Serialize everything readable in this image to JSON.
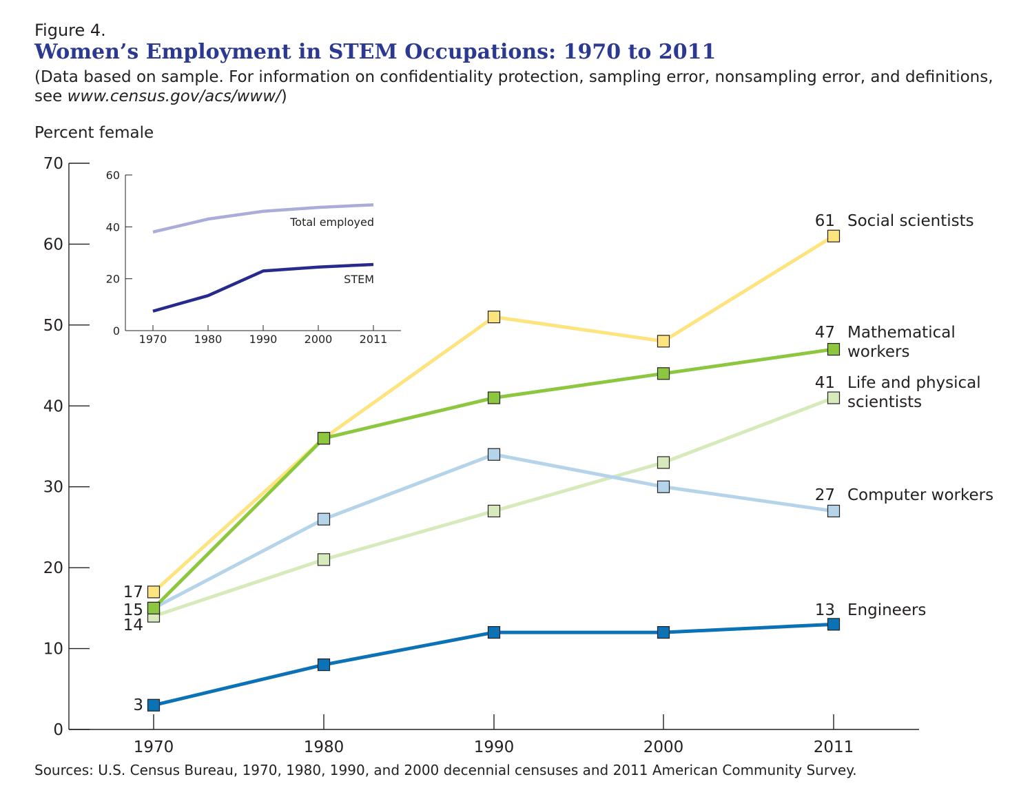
{
  "figure_label": "Figure 4.",
  "title": "Women’s Employment in STEM Occupations: 1970 to 2011",
  "note": {
    "text": "(Data based on sample. For information on confidentiality protection, sampling error, nonsampling error, and definitions, see ",
    "url": "www.census.gov/acs/www/",
    "close": ")"
  },
  "source": "Sources: U.S. Census Bureau, 1970, 1980, 1990, and 2000 decennial censuses and 2011 American Community Survey.",
  "chart_data": [
    {
      "type": "line",
      "ylabel": "Percent female",
      "x": [
        "1970",
        "1980",
        "1990",
        "2000",
        "2011"
      ],
      "ylim": [
        0,
        70
      ],
      "yticks": [
        0,
        10,
        20,
        30,
        40,
        50,
        60,
        70
      ],
      "grid": false,
      "series": [
        {
          "name": "Social scientists",
          "label_lines": [
            "Social scientists"
          ],
          "end_label": "61",
          "start_label": "17",
          "color": "#fde47f",
          "values": [
            17,
            36,
            51,
            48,
            61
          ]
        },
        {
          "name": "Mathematical workers",
          "label_lines": [
            "Mathematical",
            "workers"
          ],
          "end_label": "47",
          "start_label": "",
          "color": "#8dc63f",
          "values": [
            15,
            36,
            41,
            44,
            47
          ]
        },
        {
          "name": "Life and physical scientists",
          "label_lines": [
            "Life and physical",
            "scientists"
          ],
          "end_label": "41",
          "start_label": "14",
          "color": "#d7eabc",
          "values": [
            14,
            21,
            27,
            33,
            41
          ]
        },
        {
          "name": "Computer workers",
          "label_lines": [
            "Computer workers"
          ],
          "end_label": "27",
          "start_label": "15",
          "color": "#b5d4ea",
          "values": [
            15,
            26,
            34,
            30,
            27
          ]
        },
        {
          "name": "Engineers",
          "label_lines": [
            "Engineers"
          ],
          "end_label": "13",
          "start_label": "3",
          "color": "#0b72b5",
          "values": [
            3,
            8,
            12,
            12,
            13
          ]
        }
      ]
    },
    {
      "type": "line",
      "x": [
        "1970",
        "1980",
        "1990",
        "2000",
        "2011"
      ],
      "ylim": [
        0,
        60
      ],
      "yticks": [
        0,
        20,
        40,
        60
      ],
      "grid": false,
      "series": [
        {
          "name": "Total employed",
          "color": "#a9add8",
          "values": [
            38,
            43,
            46,
            47.5,
            48.5
          ]
        },
        {
          "name": "STEM",
          "color": "#262a8c",
          "values": [
            7.5,
            13.5,
            23,
            24.5,
            25.5
          ]
        }
      ]
    }
  ]
}
